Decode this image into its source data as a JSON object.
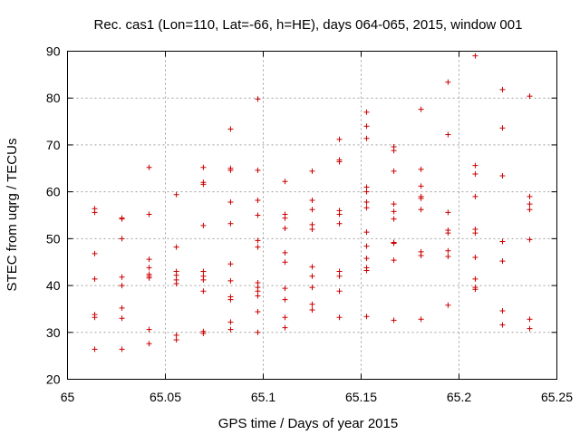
{
  "chart_data": {
    "type": "scatter",
    "title": "Rec. cas1 (Lon=110, Lat=-66, h=HE), days 064-065, 2015, window 001",
    "xlabel": "GPS time / Days of year 2015",
    "ylabel": "STEC from uqrg / TECUs",
    "xlim": [
      65,
      65.25
    ],
    "ylim": [
      20,
      90
    ],
    "xticks": [
      65,
      65.05,
      65.1,
      65.15,
      65.2,
      65.25
    ],
    "xtick_labels": [
      "65",
      "65.05",
      "65.1",
      "65.15",
      "65.2",
      "65.25"
    ],
    "yticks": [
      20,
      30,
      40,
      50,
      60,
      70,
      80,
      90
    ],
    "ytick_labels": [
      "20",
      "30",
      "40",
      "50",
      "60",
      "70",
      "80",
      "90"
    ],
    "grid": true,
    "marker": "+",
    "color": "#cc0000",
    "series": [
      {
        "name": "STEC",
        "points": [
          [
            65.0139,
            26.4
          ],
          [
            65.0139,
            33.2
          ],
          [
            65.0139,
            33.8
          ],
          [
            65.0139,
            41.4
          ],
          [
            65.0139,
            46.8
          ],
          [
            65.0139,
            55.6
          ],
          [
            65.0139,
            56.4
          ],
          [
            65.0278,
            26.4
          ],
          [
            65.0278,
            33.0
          ],
          [
            65.0278,
            35.2
          ],
          [
            65.0278,
            40.0
          ],
          [
            65.0278,
            41.8
          ],
          [
            65.0278,
            50.0
          ],
          [
            65.0278,
            54.2
          ],
          [
            65.0278,
            54.4
          ],
          [
            65.0417,
            27.6
          ],
          [
            65.0417,
            30.6
          ],
          [
            65.0417,
            41.6
          ],
          [
            65.0417,
            42.0
          ],
          [
            65.0417,
            42.4
          ],
          [
            65.0417,
            43.8
          ],
          [
            65.0417,
            45.6
          ],
          [
            65.0417,
            55.2
          ],
          [
            65.0417,
            65.2
          ],
          [
            65.0556,
            28.4
          ],
          [
            65.0556,
            29.4
          ],
          [
            65.0556,
            40.4
          ],
          [
            65.0556,
            41.2
          ],
          [
            65.0556,
            42.2
          ],
          [
            65.0556,
            43.0
          ],
          [
            65.0556,
            48.2
          ],
          [
            65.0556,
            59.4
          ],
          [
            65.0694,
            29.8
          ],
          [
            65.0694,
            30.2
          ],
          [
            65.0694,
            38.8
          ],
          [
            65.0694,
            41.2
          ],
          [
            65.0694,
            42.0
          ],
          [
            65.0694,
            43.0
          ],
          [
            65.0694,
            52.8
          ],
          [
            65.0694,
            61.6
          ],
          [
            65.0694,
            62.0
          ],
          [
            65.0694,
            65.2
          ],
          [
            65.0833,
            30.6
          ],
          [
            65.0833,
            32.2
          ],
          [
            65.0833,
            37.0
          ],
          [
            65.0833,
            37.6
          ],
          [
            65.0833,
            41.0
          ],
          [
            65.0833,
            44.6
          ],
          [
            65.0833,
            53.2
          ],
          [
            65.0833,
            57.8
          ],
          [
            65.0833,
            64.6
          ],
          [
            65.0833,
            65.0
          ],
          [
            65.0833,
            73.4
          ],
          [
            65.0972,
            30.0
          ],
          [
            65.0972,
            34.4
          ],
          [
            65.0972,
            37.8
          ],
          [
            65.0972,
            38.8
          ],
          [
            65.0972,
            39.6
          ],
          [
            65.0972,
            40.6
          ],
          [
            65.0972,
            48.2
          ],
          [
            65.0972,
            49.6
          ],
          [
            65.0972,
            55.0
          ],
          [
            65.0972,
            58.2
          ],
          [
            65.0972,
            64.6
          ],
          [
            65.0972,
            79.8
          ],
          [
            65.1111,
            31.0
          ],
          [
            65.1111,
            33.2
          ],
          [
            65.1111,
            37.0
          ],
          [
            65.1111,
            39.4
          ],
          [
            65.1111,
            45.0
          ],
          [
            65.1111,
            47.0
          ],
          [
            65.1111,
            52.2
          ],
          [
            65.1111,
            54.4
          ],
          [
            65.1111,
            55.2
          ],
          [
            65.1111,
            62.2
          ],
          [
            65.125,
            34.8
          ],
          [
            65.125,
            36.0
          ],
          [
            65.125,
            39.6
          ],
          [
            65.125,
            42.0
          ],
          [
            65.125,
            44.0
          ],
          [
            65.125,
            52.0
          ],
          [
            65.125,
            53.0
          ],
          [
            65.125,
            56.2
          ],
          [
            65.125,
            58.2
          ],
          [
            65.125,
            64.4
          ],
          [
            65.1389,
            33.2
          ],
          [
            65.1389,
            38.8
          ],
          [
            65.1389,
            42.0
          ],
          [
            65.1389,
            43.0
          ],
          [
            65.1389,
            53.2
          ],
          [
            65.1389,
            55.2
          ],
          [
            65.1389,
            56.0
          ],
          [
            65.1389,
            66.4
          ],
          [
            65.1389,
            66.8
          ],
          [
            65.1389,
            71.2
          ],
          [
            65.1528,
            33.4
          ],
          [
            65.1528,
            43.2
          ],
          [
            65.1528,
            43.8
          ],
          [
            65.1528,
            45.8
          ],
          [
            65.1528,
            48.4
          ],
          [
            65.1528,
            51.4
          ],
          [
            65.1528,
            56.6
          ],
          [
            65.1528,
            57.8
          ],
          [
            65.1528,
            60.0
          ],
          [
            65.1528,
            61.0
          ],
          [
            65.1528,
            71.4
          ],
          [
            65.1528,
            74.0
          ],
          [
            65.1528,
            77.0
          ],
          [
            65.1667,
            32.6
          ],
          [
            65.1667,
            45.4
          ],
          [
            65.1667,
            49.0
          ],
          [
            65.1667,
            49.2
          ],
          [
            65.1667,
            54.2
          ],
          [
            65.1667,
            55.8
          ],
          [
            65.1667,
            57.4
          ],
          [
            65.1667,
            64.4
          ],
          [
            65.1667,
            68.8
          ],
          [
            65.1667,
            69.6
          ],
          [
            65.1806,
            32.8
          ],
          [
            65.1806,
            46.4
          ],
          [
            65.1806,
            47.2
          ],
          [
            65.1806,
            56.2
          ],
          [
            65.1806,
            58.6
          ],
          [
            65.1806,
            59.0
          ],
          [
            65.1806,
            61.2
          ],
          [
            65.1806,
            64.8
          ],
          [
            65.1806,
            77.6
          ],
          [
            65.1944,
            35.8
          ],
          [
            65.1944,
            46.2
          ],
          [
            65.1944,
            47.4
          ],
          [
            65.1944,
            51.2
          ],
          [
            65.1944,
            51.8
          ],
          [
            65.1944,
            55.6
          ],
          [
            65.1944,
            72.2
          ],
          [
            65.1944,
            83.4
          ],
          [
            65.2083,
            39.2
          ],
          [
            65.2083,
            39.6
          ],
          [
            65.2083,
            41.4
          ],
          [
            65.2083,
            46.0
          ],
          [
            65.2083,
            51.2
          ],
          [
            65.2083,
            52.0
          ],
          [
            65.2083,
            59.0
          ],
          [
            65.2083,
            63.8
          ],
          [
            65.2083,
            65.6
          ],
          [
            65.2083,
            89.0
          ],
          [
            65.2222,
            31.6
          ],
          [
            65.2222,
            34.6
          ],
          [
            65.2222,
            45.2
          ],
          [
            65.2222,
            49.4
          ],
          [
            65.2222,
            63.4
          ],
          [
            65.2222,
            73.6
          ],
          [
            65.2222,
            81.8
          ],
          [
            65.2361,
            30.8
          ],
          [
            65.2361,
            32.8
          ],
          [
            65.2361,
            49.8
          ],
          [
            65.2361,
            56.2
          ],
          [
            65.2361,
            57.4
          ],
          [
            65.2361,
            59.0
          ],
          [
            65.2361,
            80.4
          ]
        ]
      }
    ]
  }
}
